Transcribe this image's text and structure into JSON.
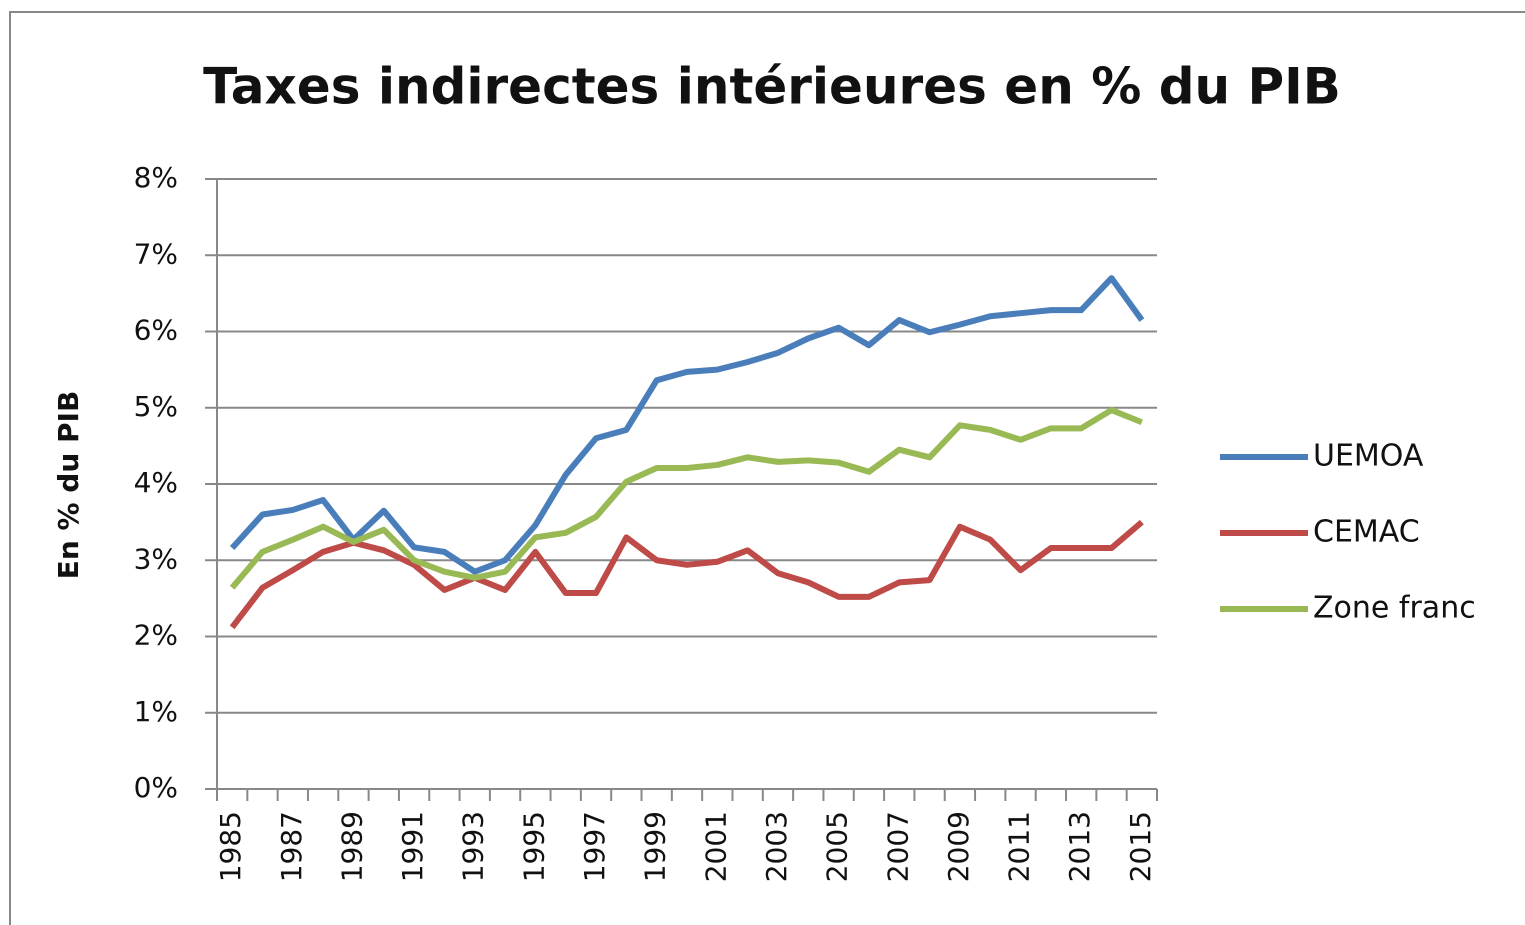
{
  "chart_data": {
    "type": "line",
    "title": "Taxes indirectes intérieures en % du PIB",
    "y_label": "En % du PIB",
    "categories": [
      "1985",
      null,
      "1987",
      null,
      "1989",
      null,
      "1991",
      null,
      "1993",
      null,
      "1995",
      null,
      "1997",
      null,
      "1999",
      null,
      "2001",
      null,
      "2003",
      null,
      "2005",
      null,
      "2007",
      null,
      "2009",
      null,
      "2011",
      null,
      "2013",
      null,
      "2015"
    ],
    "series": [
      {
        "name": "UEMOA",
        "color": "#4a7ebb",
        "values": [
          3.16,
          3.6,
          3.66,
          3.79,
          3.27,
          3.65,
          3.17,
          3.11,
          2.85,
          3.0,
          3.46,
          4.12,
          4.6,
          4.71,
          5.36,
          5.47,
          5.5,
          5.6,
          5.72,
          5.91,
          6.05,
          5.82,
          6.15,
          5.99,
          6.09,
          6.2,
          6.24,
          6.28,
          6.28,
          6.7,
          6.15
        ]
      },
      {
        "name": "CEMAC",
        "color": "#be4b48",
        "values": [
          2.12,
          2.64,
          2.87,
          3.11,
          3.23,
          3.13,
          2.94,
          2.61,
          2.77,
          2.61,
          3.11,
          2.57,
          2.57,
          3.3,
          3.0,
          2.94,
          2.98,
          3.13,
          2.83,
          2.71,
          2.52,
          2.52,
          2.71,
          2.74,
          3.44,
          3.27,
          2.87,
          3.16,
          3.16,
          3.16,
          3.5
        ]
      },
      {
        "name": "Zone franc",
        "color": "#98b954",
        "values": [
          2.64,
          3.11,
          3.27,
          3.44,
          3.24,
          3.4,
          3.0,
          2.85,
          2.77,
          2.85,
          3.3,
          3.36,
          3.57,
          4.03,
          4.21,
          4.21,
          4.25,
          4.35,
          4.29,
          4.31,
          4.28,
          4.16,
          4.45,
          4.35,
          4.77,
          4.71,
          4.58,
          4.73,
          4.73,
          4.97,
          4.81
        ]
      }
    ],
    "ylim": [
      0,
      8
    ],
    "yticks": [
      {
        "value": 0,
        "label": "0%"
      },
      {
        "value": 1,
        "label": "1%"
      },
      {
        "value": 2,
        "label": "2%"
      },
      {
        "value": 3,
        "label": "3%"
      },
      {
        "value": 4,
        "label": "4%"
      },
      {
        "value": 5,
        "label": "5%"
      },
      {
        "value": 6,
        "label": "6%"
      },
      {
        "value": 7,
        "label": "7%"
      },
      {
        "value": 8,
        "label": "8%"
      }
    ],
    "grid": true,
    "legend": "right"
  }
}
